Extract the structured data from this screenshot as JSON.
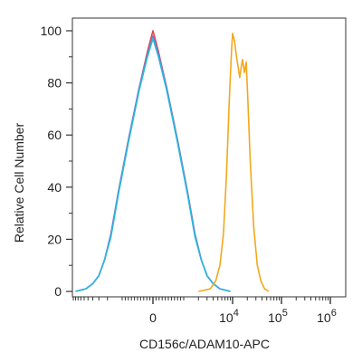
{
  "chart_data": {
    "type": "line",
    "xlabel": "CD156c/ADAM10-APC",
    "ylabel": "Relative Cell Number",
    "ylim": [
      0,
      100
    ],
    "y_ticks": [
      0,
      20,
      40,
      60,
      80,
      100
    ],
    "x_scale": "biexponential",
    "x_ticks": [
      {
        "value": 0,
        "base": "0",
        "exp": ""
      },
      {
        "value": 10000,
        "base": "10",
        "exp": "4"
      },
      {
        "value": 100000,
        "base": "10",
        "exp": "5"
      },
      {
        "value": 1000000,
        "base": "10",
        "exp": "6"
      }
    ],
    "grid": false,
    "legend": "none",
    "series": [
      {
        "color": "#e8434a",
        "points": [
          [
            -9000,
            0
          ],
          [
            -5500,
            1
          ],
          [
            -4000,
            3
          ],
          [
            -3000,
            6
          ],
          [
            -2300,
            12
          ],
          [
            -1700,
            22
          ],
          [
            -1200,
            38
          ],
          [
            -800,
            58
          ],
          [
            -450,
            78
          ],
          [
            -180,
            92
          ],
          [
            0,
            100
          ],
          [
            180,
            92
          ],
          [
            450,
            78
          ],
          [
            800,
            58
          ],
          [
            1200,
            38
          ],
          [
            1700,
            22
          ],
          [
            2300,
            12
          ],
          [
            3000,
            6
          ],
          [
            4000,
            3
          ],
          [
            5500,
            1
          ],
          [
            9000,
            0
          ]
        ]
      },
      {
        "color": "#6a7fcf",
        "points": [
          [
            -9000,
            0
          ],
          [
            -5500,
            1
          ],
          [
            -4000,
            3
          ],
          [
            -3000,
            6
          ],
          [
            -2300,
            12
          ],
          [
            -1700,
            22
          ],
          [
            -1200,
            38
          ],
          [
            -800,
            58
          ],
          [
            -450,
            78
          ],
          [
            -180,
            91
          ],
          [
            0,
            98
          ],
          [
            180,
            91
          ],
          [
            450,
            78
          ],
          [
            800,
            58
          ],
          [
            1200,
            38
          ],
          [
            1700,
            22
          ],
          [
            2300,
            12
          ],
          [
            3000,
            6
          ],
          [
            4000,
            3
          ],
          [
            5500,
            1
          ],
          [
            9000,
            0
          ]
        ]
      },
      {
        "color": "#2ab7e0",
        "points": [
          [
            -9000,
            0
          ],
          [
            -5500,
            1
          ],
          [
            -4000,
            3
          ],
          [
            -3000,
            6
          ],
          [
            -2300,
            12
          ],
          [
            -1700,
            21
          ],
          [
            -1200,
            37
          ],
          [
            -800,
            57
          ],
          [
            -450,
            77
          ],
          [
            -180,
            90
          ],
          [
            0,
            97
          ],
          [
            180,
            90
          ],
          [
            450,
            77
          ],
          [
            800,
            57
          ],
          [
            1200,
            37
          ],
          [
            1700,
            21
          ],
          [
            2300,
            12
          ],
          [
            3000,
            6
          ],
          [
            4000,
            3
          ],
          [
            5500,
            1
          ],
          [
            9000,
            0
          ]
        ]
      },
      {
        "color": "#f2a81d",
        "points": [
          [
            2000,
            0
          ],
          [
            3500,
            1
          ],
          [
            4500,
            4
          ],
          [
            5500,
            10
          ],
          [
            6500,
            22
          ],
          [
            7500,
            45
          ],
          [
            8500,
            72
          ],
          [
            9500,
            92
          ],
          [
            10000,
            99
          ],
          [
            11000,
            96
          ],
          [
            12000,
            90
          ],
          [
            13000,
            86
          ],
          [
            14000,
            82
          ],
          [
            15000,
            86
          ],
          [
            16000,
            89
          ],
          [
            17500,
            84
          ],
          [
            19000,
            88
          ],
          [
            20500,
            74
          ],
          [
            23000,
            50
          ],
          [
            27000,
            25
          ],
          [
            32000,
            10
          ],
          [
            38000,
            4
          ],
          [
            45000,
            1
          ],
          [
            55000,
            0
          ]
        ]
      }
    ]
  }
}
